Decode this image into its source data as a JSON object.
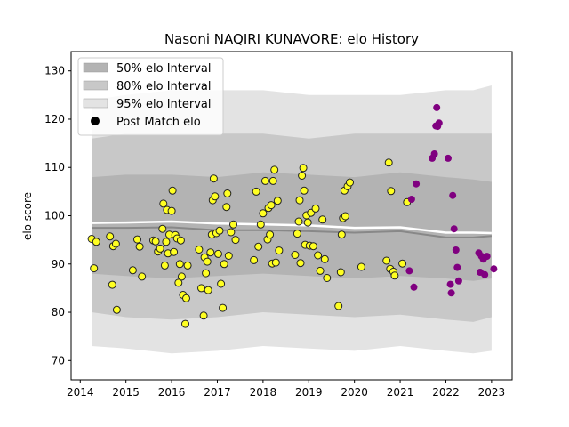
{
  "chart_data": {
    "type": "scatter",
    "title": "Nasoni NAQIRI KUNAVORE: elo History",
    "xlabel": "",
    "ylabel": "elo score",
    "xlim": [
      2013.8,
      2023.45
    ],
    "ylim": [
      66.0,
      134.0
    ],
    "xticks": [
      2014,
      2015,
      2016,
      2017,
      2018,
      2019,
      2020,
      2021,
      2022,
      2023
    ],
    "yticks": [
      70,
      80,
      90,
      100,
      110,
      120,
      130
    ],
    "legend": {
      "placement": "top-left",
      "items": [
        {
          "label": "50% elo Interval",
          "kind": "band",
          "color": "#b3b3b3"
        },
        {
          "label": "80% elo Interval",
          "kind": "band",
          "color": "#c8c8c8"
        },
        {
          "label": "95% elo Interval",
          "kind": "band",
          "color": "#e3e3e3"
        },
        {
          "label": "Post Match elo",
          "kind": "marker",
          "color": "#000000"
        }
      ]
    },
    "bands": {
      "x": [
        2014.25,
        2015.0,
        2016.0,
        2017.0,
        2018.0,
        2019.0,
        2020.0,
        2021.0,
        2022.0,
        2022.6,
        2023.0
      ],
      "i95": {
        "lower": [
          73,
          72.5,
          71.5,
          72,
          73,
          72.5,
          72,
          73,
          72,
          71.5,
          72
        ],
        "upper": [
          124,
          125,
          126,
          126,
          126,
          125,
          125,
          125,
          126,
          126,
          127
        ]
      },
      "i80": {
        "lower": [
          80,
          79,
          78.5,
          79,
          80,
          79.5,
          79,
          79.5,
          78.5,
          78,
          79
        ],
        "upper": [
          116,
          117,
          117,
          117,
          117,
          116,
          117,
          117,
          117,
          117,
          117
        ]
      },
      "i50": {
        "lower": [
          88,
          87.5,
          87,
          87.5,
          88,
          87.5,
          87,
          87.5,
          87,
          86.5,
          87
        ],
        "upper": [
          108,
          108.5,
          108.5,
          108,
          109,
          108.5,
          108,
          109,
          108,
          107.5,
          107
        ]
      }
    },
    "median_line": {
      "x": [
        2014.25,
        2015.0,
        2016.0,
        2017.0,
        2018.0,
        2019.0,
        2020.0,
        2021.0,
        2022.0,
        2022.6,
        2023.0
      ],
      "y": [
        98.5,
        98.6,
        98.8,
        98.4,
        98.2,
        98.0,
        97.5,
        97.6,
        96.5,
        96.5,
        96.4
      ]
    },
    "gray_line": {
      "x": [
        2014.25,
        2015.0,
        2016.0,
        2017.0,
        2018.0,
        2019.0,
        2020.0,
        2021.0,
        2022.0,
        2022.6,
        2023.0
      ],
      "y": [
        97.5,
        97.5,
        97.6,
        97.0,
        97.0,
        96.8,
        96.5,
        96.8,
        95.5,
        95.5,
        95.8
      ]
    },
    "series": [
      {
        "name": "Post Match elo",
        "color": "#ffff22",
        "points": [
          [
            2014.25,
            95.2
          ],
          [
            2014.3,
            89.1
          ],
          [
            2014.35,
            94.6
          ],
          [
            2014.65,
            95.7
          ],
          [
            2014.7,
            85.7
          ],
          [
            2014.72,
            93.7
          ],
          [
            2014.78,
            94.2
          ],
          [
            2014.8,
            80.5
          ],
          [
            2015.15,
            88.7
          ],
          [
            2015.25,
            95.1
          ],
          [
            2015.3,
            93.6
          ],
          [
            2015.35,
            87.4
          ],
          [
            2015.6,
            94.9
          ],
          [
            2015.65,
            94.7
          ],
          [
            2015.7,
            92.6
          ],
          [
            2015.75,
            93.2
          ],
          [
            2015.8,
            97.3
          ],
          [
            2015.82,
            102.5
          ],
          [
            2015.85,
            89.7
          ],
          [
            2015.88,
            94.6
          ],
          [
            2015.9,
            101.2
          ],
          [
            2015.92,
            92.2
          ],
          [
            2015.95,
            96.1
          ],
          [
            2016.0,
            101.0
          ],
          [
            2016.02,
            105.2
          ],
          [
            2016.05,
            92.5
          ],
          [
            2016.08,
            96.0
          ],
          [
            2016.12,
            95.3
          ],
          [
            2016.15,
            86.1
          ],
          [
            2016.18,
            90.0
          ],
          [
            2016.2,
            94.9
          ],
          [
            2016.22,
            87.4
          ],
          [
            2016.25,
            83.6
          ],
          [
            2016.3,
            77.6
          ],
          [
            2016.32,
            82.9
          ],
          [
            2016.35,
            89.7
          ],
          [
            2016.6,
            93.0
          ],
          [
            2016.65,
            85.0
          ],
          [
            2016.7,
            79.3
          ],
          [
            2016.72,
            91.4
          ],
          [
            2016.75,
            88.1
          ],
          [
            2016.78,
            90.5
          ],
          [
            2016.8,
            84.6
          ],
          [
            2016.85,
            92.4
          ],
          [
            2016.88,
            96.1
          ],
          [
            2016.9,
            103.2
          ],
          [
            2016.92,
            107.7
          ],
          [
            2016.95,
            104.0
          ],
          [
            2016.98,
            96.4
          ],
          [
            2017.02,
            92.1
          ],
          [
            2017.05,
            96.9
          ],
          [
            2017.08,
            85.9
          ],
          [
            2017.12,
            80.9
          ],
          [
            2017.15,
            90.0
          ],
          [
            2017.2,
            101.8
          ],
          [
            2017.22,
            104.6
          ],
          [
            2017.25,
            91.7
          ],
          [
            2017.3,
            96.6
          ],
          [
            2017.35,
            98.2
          ],
          [
            2017.4,
            95.0
          ],
          [
            2017.8,
            90.8
          ],
          [
            2017.85,
            105.0
          ],
          [
            2017.9,
            93.6
          ],
          [
            2017.95,
            98.2
          ],
          [
            2018.0,
            100.5
          ],
          [
            2018.05,
            107.2
          ],
          [
            2018.1,
            95.1
          ],
          [
            2018.12,
            101.6
          ],
          [
            2018.15,
            96.1
          ],
          [
            2018.18,
            102.2
          ],
          [
            2018.2,
            90.1
          ],
          [
            2018.22,
            107.2
          ],
          [
            2018.25,
            109.5
          ],
          [
            2018.28,
            90.3
          ],
          [
            2018.32,
            103.1
          ],
          [
            2018.35,
            92.8
          ],
          [
            2018.7,
            91.9
          ],
          [
            2018.75,
            96.3
          ],
          [
            2018.78,
            98.8
          ],
          [
            2018.8,
            103.2
          ],
          [
            2018.82,
            90.2
          ],
          [
            2018.85,
            108.3
          ],
          [
            2018.88,
            109.9
          ],
          [
            2018.9,
            105.2
          ],
          [
            2018.92,
            94.0
          ],
          [
            2018.95,
            100.1
          ],
          [
            2018.98,
            98.6
          ],
          [
            2019.02,
            93.8
          ],
          [
            2019.05,
            100.6
          ],
          [
            2019.1,
            93.7
          ],
          [
            2019.15,
            101.5
          ],
          [
            2019.2,
            91.8
          ],
          [
            2019.25,
            88.6
          ],
          [
            2019.3,
            99.2
          ],
          [
            2019.35,
            91.0
          ],
          [
            2019.4,
            87.1
          ],
          [
            2019.65,
            81.3
          ],
          [
            2019.7,
            88.3
          ],
          [
            2019.72,
            96.1
          ],
          [
            2019.75,
            99.5
          ],
          [
            2019.78,
            105.2
          ],
          [
            2019.8,
            99.9
          ],
          [
            2019.85,
            106.1
          ],
          [
            2019.9,
            106.9
          ],
          [
            2020.15,
            89.4
          ],
          [
            2020.7,
            90.7
          ],
          [
            2020.75,
            111.0
          ],
          [
            2020.78,
            89.0
          ],
          [
            2020.8,
            105.1
          ],
          [
            2020.85,
            88.4
          ],
          [
            2020.88,
            87.6
          ],
          [
            2021.05,
            90.1
          ],
          [
            2021.15,
            102.8
          ]
        ]
      },
      {
        "name": "",
        "color": "#800080",
        "points": [
          [
            2021.2,
            88.6
          ],
          [
            2021.25,
            103.4
          ],
          [
            2021.3,
            85.2
          ],
          [
            2021.35,
            106.6
          ],
          [
            2021.7,
            111.9
          ],
          [
            2021.75,
            112.8
          ],
          [
            2021.78,
            118.6
          ],
          [
            2021.8,
            122.4
          ],
          [
            2021.82,
            118.5
          ],
          [
            2021.85,
            119.2
          ],
          [
            2022.05,
            111.9
          ],
          [
            2022.1,
            85.8
          ],
          [
            2022.12,
            84.0
          ],
          [
            2022.15,
            104.2
          ],
          [
            2022.18,
            97.3
          ],
          [
            2022.22,
            92.9
          ],
          [
            2022.25,
            89.3
          ],
          [
            2022.28,
            86.5
          ],
          [
            2022.72,
            92.3
          ],
          [
            2022.75,
            88.3
          ],
          [
            2022.78,
            91.6
          ],
          [
            2022.82,
            91.0
          ],
          [
            2022.85,
            87.8
          ],
          [
            2022.9,
            91.6
          ],
          [
            2023.05,
            89.0
          ]
        ]
      }
    ]
  }
}
